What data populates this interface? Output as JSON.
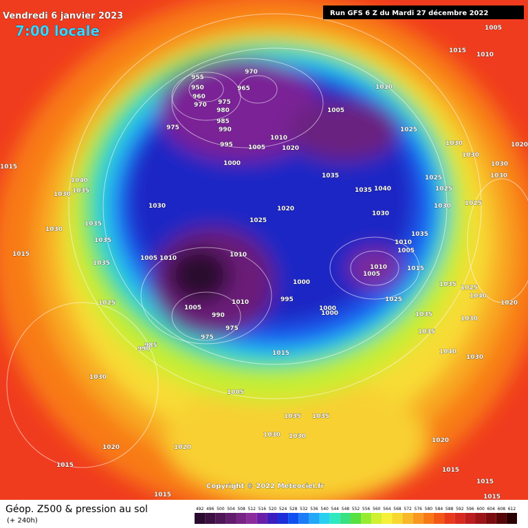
{
  "header": {
    "date": "Vendredi 6 janvier 2023",
    "time": "7:00 locale",
    "run": "Run GFS 6 Z du Mardi 27 décembre 2022"
  },
  "copyright": "Copyright © 2022 Meteociel.fr",
  "footer": {
    "title": "Géop. Z500 & pression au sol",
    "subtitle": "(+ 240h)"
  },
  "scale": {
    "values": [
      492,
      496,
      500,
      504,
      508,
      512,
      516,
      520,
      524,
      528,
      532,
      536,
      540,
      544,
      548,
      552,
      556,
      560,
      564,
      568,
      572,
      576,
      580,
      584,
      588,
      592,
      596,
      600,
      604,
      608,
      612
    ],
    "colors": [
      "#2a0a2e",
      "#3c1040",
      "#4e1656",
      "#621c6c",
      "#782484",
      "#8c2c9c",
      "#6a1ea8",
      "#3a1ec0",
      "#1c2ed8",
      "#1050f0",
      "#1c7cf8",
      "#22a8f8",
      "#28d0f0",
      "#2ee8c0",
      "#38e080",
      "#58e040",
      "#98ec30",
      "#d0f030",
      "#f6f03a",
      "#f8d830",
      "#f8b828",
      "#f89820",
      "#f87818",
      "#f45818",
      "#ea3a1c",
      "#d82a20",
      "#bc1e20",
      "#9c1418",
      "#7a0c10",
      "#560608",
      "#2a0000"
    ]
  },
  "pressure_labels": [
    1005,
    1015,
    1010,
    955,
    970,
    950,
    965,
    960,
    975,
    970,
    980,
    985,
    975,
    990,
    1010,
    1005,
    1025,
    1030,
    1020,
    995,
    1005,
    1010,
    1020,
    1000,
    1030,
    1030,
    1035,
    1025,
    1035,
    1040,
    1030,
    1025,
    1030,
    1025,
    1040,
    1030,
    1035,
    1030,
    1020,
    1025,
    1030,
    1030,
    1035,
    1035,
    1035,
    1015,
    1005,
    1010,
    1010,
    1010,
    1005,
    1010,
    1005,
    1015,
    1035,
    1000,
    1035,
    1025,
    1040,
    1020,
    1025,
    1025,
    1010,
    1005,
    995,
    1000,
    1000,
    1035,
    1030,
    990,
    975,
    975,
    1035,
    985,
    990,
    1015,
    1040,
    1030,
    1030,
    1005,
    1035,
    1035,
    1030,
    1030,
    1020,
    1020,
    1020,
    1015,
    1015,
    1015,
    1015,
    1015,
    1015
  ]
}
